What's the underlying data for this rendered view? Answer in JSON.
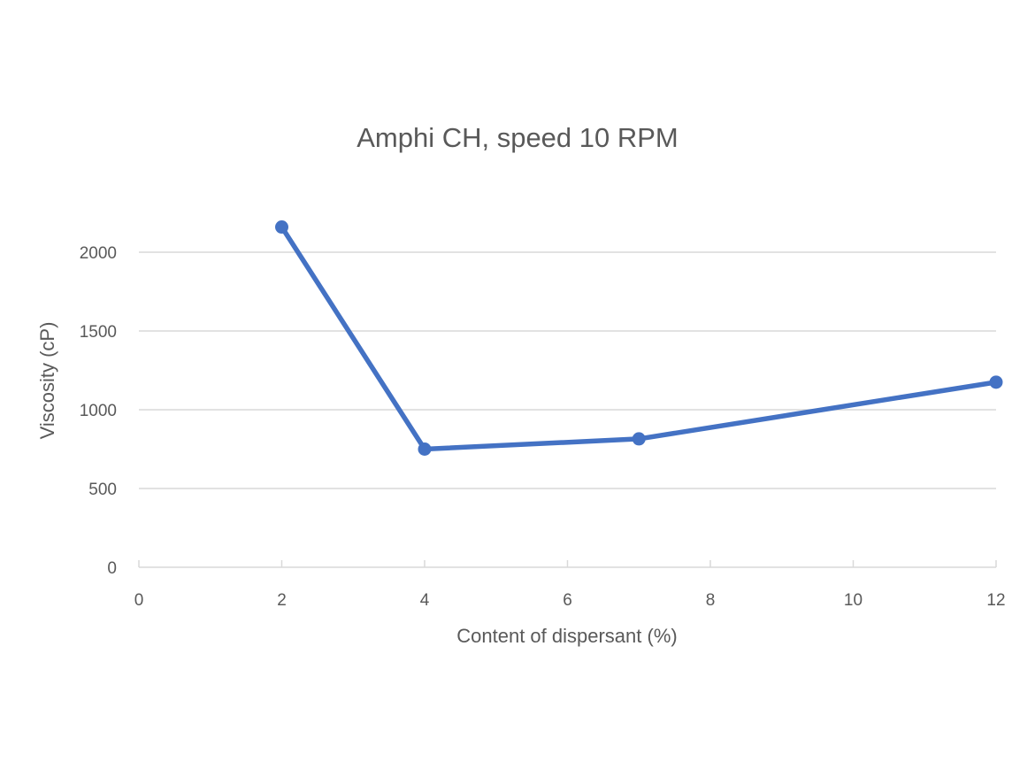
{
  "chart_data": {
    "type": "line",
    "title": "Amphi CH, speed 10 RPM",
    "xlabel": "Content of dispersant (%)",
    "ylabel": "Viscosity (cP)",
    "xlim": [
      0,
      12
    ],
    "ylim": [
      0,
      2000
    ],
    "xticks": [
      0,
      2,
      4,
      6,
      8,
      10,
      12
    ],
    "yticks": [
      0,
      500,
      1000,
      1500,
      2000
    ],
    "grid": "horizontal",
    "legend": "none",
    "series": [
      {
        "name": "Viscosity",
        "color": "#4472C4",
        "x": [
          2,
          4,
          7,
          12
        ],
        "y": [
          2160,
          750,
          815,
          1175
        ]
      }
    ]
  }
}
